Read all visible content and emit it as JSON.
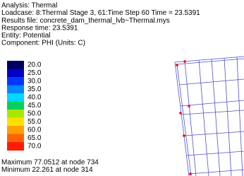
{
  "header": {
    "lines": [
      "Analysis: Thermal",
      "Loadcase: 8:Thermal Stage 3, 61:Time Step 60 Time = 23.5391",
      "Results file: concrete_dam_thermal_lvb~Thermal.mys",
      "Response time: 23.5391",
      "Entity: Potential",
      "Component: PHI (Units: C)"
    ]
  },
  "legend": {
    "items": [
      {
        "label": "20.0",
        "color": "#00005e"
      },
      {
        "label": "25.0",
        "color": "#0000c8"
      },
      {
        "label": "30.0",
        "color": "#0038ff"
      },
      {
        "label": "35.0",
        "color": "#0088ff"
      },
      {
        "label": "40.0",
        "color": "#00d8ff"
      },
      {
        "label": "45.0",
        "color": "#00d060"
      },
      {
        "label": "50.0",
        "color": "#a8e800"
      },
      {
        "label": "55.0",
        "color": "#ffe000"
      },
      {
        "label": "60.0",
        "color": "#ffa000"
      },
      {
        "label": "65.0",
        "color": "#ff6400"
      },
      {
        "label": "70.0",
        "color": "#ff1c00"
      }
    ]
  },
  "footer": {
    "lines": [
      "Maximum 77.0512 at node 734",
      "Minimum 22.261 at node 314"
    ]
  }
}
